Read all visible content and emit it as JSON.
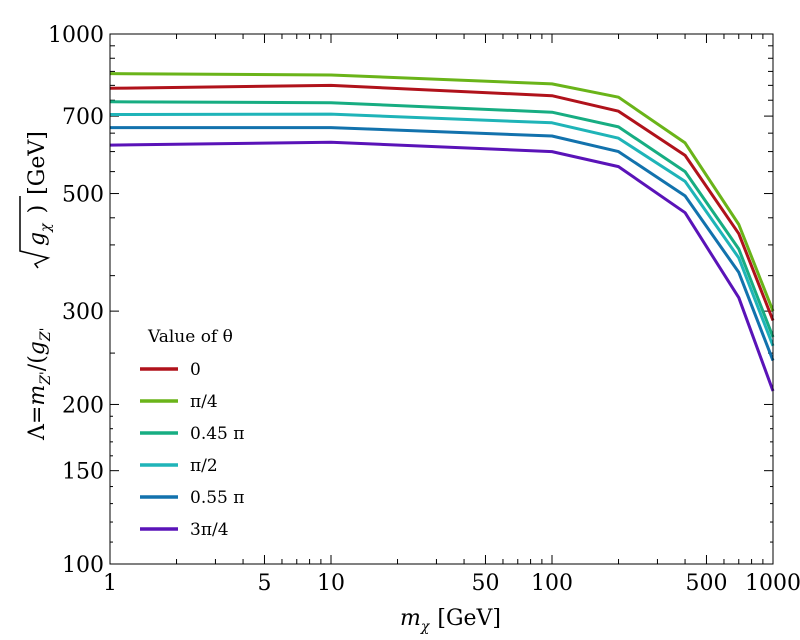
{
  "chart_data": {
    "type": "line",
    "title": "",
    "xlabel_parts": {
      "symbol": "m",
      "subscript": "χ",
      "unit": "[GeV]"
    },
    "ylabel": "Λ=m_Z'/(g_Z' √g_χ)  [GeV]",
    "ylabel_parts": {
      "lambda": "Λ=",
      "m": "m",
      "m_sub": "Z'",
      "open": "/(",
      "g": "g",
      "g_sub": "Z'",
      "rad_g": "g",
      "rad_sub": "χ",
      "close": ")",
      "unit": "[GeV]"
    },
    "xscale": "log",
    "yscale": "log",
    "xlim": [
      1,
      1000
    ],
    "ylim": [
      100,
      1000
    ],
    "x_ticks": [
      {
        "value": 1,
        "label": "1"
      },
      {
        "value": 5,
        "label": "5"
      },
      {
        "value": 10,
        "label": "10"
      },
      {
        "value": 50,
        "label": "50"
      },
      {
        "value": 100,
        "label": "100"
      },
      {
        "value": 500,
        "label": "500"
      },
      {
        "value": 1000,
        "label": "1000"
      }
    ],
    "y_ticks": [
      {
        "value": 100,
        "label": "100"
      },
      {
        "value": 150,
        "label": "150"
      },
      {
        "value": 200,
        "label": "200"
      },
      {
        "value": 300,
        "label": "300"
      },
      {
        "value": 500,
        "label": "500"
      },
      {
        "value": 700,
        "label": "700"
      },
      {
        "value": 1000,
        "label": "1000"
      }
    ],
    "x": [
      1,
      10,
      100,
      200,
      400,
      700,
      1000
    ],
    "legend_title": "Value of θ",
    "legend_position": "lower-left",
    "series": [
      {
        "name": "0",
        "color": "#b0121b",
        "values": [
          790,
          800,
          765,
          715,
          590,
          420,
          288
        ]
      },
      {
        "name": "π/4",
        "color": "#6ab419",
        "values": [
          842,
          837,
          805,
          760,
          623,
          437,
          300
        ]
      },
      {
        "name": "0.45 π",
        "color": "#17ad82",
        "values": [
          745,
          742,
          712,
          668,
          550,
          393,
          268
        ]
      },
      {
        "name": "π/2",
        "color": "#1fb4b8",
        "values": [
          705,
          706,
          680,
          636,
          527,
          378,
          258
        ]
      },
      {
        "name": "0.55 π",
        "color": "#1272ad",
        "values": [
          666,
          666,
          642,
          600,
          495,
          355,
          242
        ]
      },
      {
        "name": "3π/4",
        "color": "#5a13b8",
        "values": [
          617,
          625,
          600,
          562,
          460,
          318,
          212
        ]
      }
    ]
  }
}
